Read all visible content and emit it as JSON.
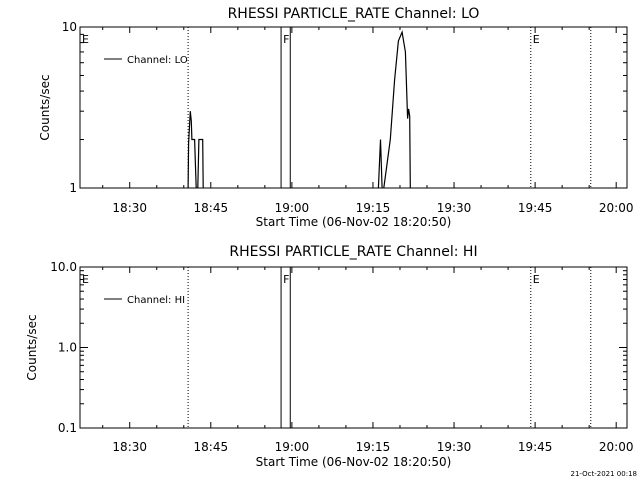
{
  "chart_data": [
    {
      "type": "line",
      "title": "RHESSI PARTICLE_RATE Channel: LO",
      "xlabel": "Start Time (06-Nov-02 18:20:50)",
      "ylabel": "Counts/sec",
      "yscale": "log",
      "ylim": [
        1,
        10
      ],
      "y_ticks": [
        "1",
        "10"
      ],
      "xlim": [
        0,
        101.2
      ],
      "x_ticks": [
        {
          "label": "18:30",
          "value": 9.2
        },
        {
          "label": "18:45",
          "value": 24.2
        },
        {
          "label": "19:00",
          "value": 39.2
        },
        {
          "label": "19:15",
          "value": 54.2
        },
        {
          "label": "19:30",
          "value": 69.2
        },
        {
          "label": "19:45",
          "value": 84.2
        },
        {
          "label": "20:00",
          "value": 99.2
        }
      ],
      "legend": {
        "position": "top-left",
        "entries": [
          "Channel: LO"
        ]
      },
      "markers": [
        {
          "label": "E",
          "x": 0,
          "style": "dotted"
        },
        {
          "label": "",
          "x": 20,
          "style": "dotted"
        },
        {
          "label": "F",
          "x": 37.2,
          "style": "solid"
        },
        {
          "label": "",
          "x": 38.9,
          "style": "solid"
        },
        {
          "label": "E",
          "x": 83.4,
          "style": "dotted"
        },
        {
          "label": "",
          "x": 94.5,
          "style": "dotted"
        }
      ],
      "series": [
        {
          "name": "Channel: LO",
          "segments": [
            [
              [
                20.0,
                1.0
              ],
              [
                20.1,
                1.9
              ],
              [
                20.4,
                3.0
              ],
              [
                20.6,
                2.6
              ],
              [
                20.7,
                2.0
              ],
              [
                21.2,
                2.0
              ],
              [
                21.5,
                1.0
              ]
            ],
            [
              [
                21.8,
                1.0
              ],
              [
                22.0,
                2.0
              ],
              [
                22.7,
                2.0
              ],
              [
                22.8,
                1.0
              ]
            ],
            [
              [
                55.2,
                1.0
              ],
              [
                55.6,
                2.0
              ],
              [
                55.9,
                1.0
              ]
            ],
            [
              [
                56.2,
                1.0
              ],
              [
                57.4,
                2.0
              ],
              [
                58.2,
                4.7
              ],
              [
                58.9,
                8.2
              ],
              [
                59.6,
                9.3
              ],
              [
                60.2,
                7.0
              ],
              [
                60.6,
                2.7
              ],
              [
                60.8,
                3.1
              ],
              [
                61.0,
                2.8
              ],
              [
                61.1,
                1.0
              ]
            ]
          ]
        }
      ]
    },
    {
      "type": "line",
      "title": "RHESSI PARTICLE_RATE Channel: HI",
      "xlabel": "Start Time (06-Nov-02 18:20:50)",
      "ylabel": "Counts/sec",
      "yscale": "log",
      "ylim": [
        0.1,
        10
      ],
      "y_ticks": [
        "0.1",
        "1.0",
        "10.0"
      ],
      "xlim": [
        0,
        101.2
      ],
      "x_ticks": [
        {
          "label": "18:30",
          "value": 9.2
        },
        {
          "label": "18:45",
          "value": 24.2
        },
        {
          "label": "19:00",
          "value": 39.2
        },
        {
          "label": "19:15",
          "value": 54.2
        },
        {
          "label": "19:30",
          "value": 69.2
        },
        {
          "label": "19:45",
          "value": 84.2
        },
        {
          "label": "20:00",
          "value": 99.2
        }
      ],
      "legend": {
        "position": "top-left",
        "entries": [
          "Channel: HI"
        ]
      },
      "markers": [
        {
          "label": "E",
          "x": 0,
          "style": "dotted"
        },
        {
          "label": "",
          "x": 20,
          "style": "dotted"
        },
        {
          "label": "F",
          "x": 37.2,
          "style": "solid"
        },
        {
          "label": "",
          "x": 38.9,
          "style": "solid"
        },
        {
          "label": "E",
          "x": 83.4,
          "style": "dotted"
        },
        {
          "label": "",
          "x": 94.5,
          "style": "dotted"
        }
      ],
      "series": [
        {
          "name": "Channel: HI",
          "segments": []
        }
      ]
    }
  ],
  "footer": {
    "timestamp": "21-Oct-2021 00:18"
  }
}
